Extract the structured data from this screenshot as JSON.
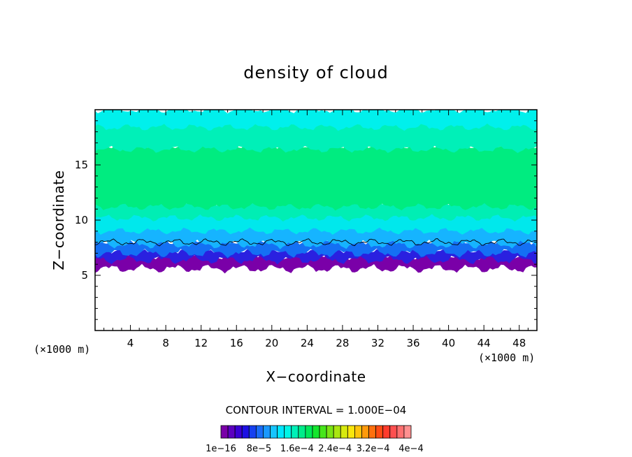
{
  "chart_data": {
    "type": "heatmap",
    "title": "density of cloud",
    "xlabel": "X−coordinate",
    "ylabel": "Z−coordinate",
    "x_unit_label": "(×1000 m)",
    "y_unit_label": "(×1000 m)",
    "xlim": [
      0,
      50
    ],
    "ylim": [
      0,
      20
    ],
    "x_ticks": [
      "4",
      "8",
      "12",
      "16",
      "20",
      "24",
      "28",
      "32",
      "36",
      "40",
      "44",
      "48"
    ],
    "y_ticks": [
      "5",
      "10",
      "15"
    ],
    "contour_interval_label": "CONTOUR INTERVAL = 1.000E−04",
    "colorbar": {
      "tick_labels": [
        "1e−16",
        "8e−5",
        "1.6e−4",
        "2.4e−4",
        "3.2e−4",
        "4e−4"
      ],
      "colors": [
        "#7a00a8",
        "#5c00c0",
        "#3a00d4",
        "#1c10e4",
        "#1640f0",
        "#1a6cf8",
        "#1a98ff",
        "#16c4ff",
        "#00e6ff",
        "#00f5e6",
        "#00f0b8",
        "#00ec8a",
        "#00e85a",
        "#14e62e",
        "#46e61a",
        "#7ae414",
        "#aae610",
        "#d8ea0e",
        "#fae60c",
        "#ffc40c",
        "#ff9a0c",
        "#ff700e",
        "#ff4c14",
        "#ff3c2c",
        "#ff5050",
        "#ff7070",
        "#ff9090"
      ]
    },
    "layers": [
      {
        "z_bottom": 5.6,
        "z_top": 6.8,
        "color": "#7a00a8"
      },
      {
        "z_bottom": 6.4,
        "z_top": 7.4,
        "color": "#2a20e0"
      },
      {
        "z_bottom": 7.0,
        "z_top": 8.2,
        "color": "#1470f4"
      },
      {
        "z_bottom": 7.8,
        "z_top": 9.4,
        "color": "#16b4ff"
      },
      {
        "z_bottom": 9.0,
        "z_top": 10.6,
        "color": "#00e8ec"
      },
      {
        "z_bottom": 10.2,
        "z_top": 11.6,
        "color": "#00eeb4"
      },
      {
        "z_bottom": 11.2,
        "z_top": 16.8,
        "color": "#00ec80"
      },
      {
        "z_bottom": 16.4,
        "z_top": 18.8,
        "color": "#00f0b8"
      },
      {
        "z_bottom": 18.4,
        "z_top": 20.0,
        "color": "#00f0ec"
      }
    ],
    "contour_line": {
      "z": 8.0,
      "color": "#000000"
    },
    "legend": "bottom"
  }
}
